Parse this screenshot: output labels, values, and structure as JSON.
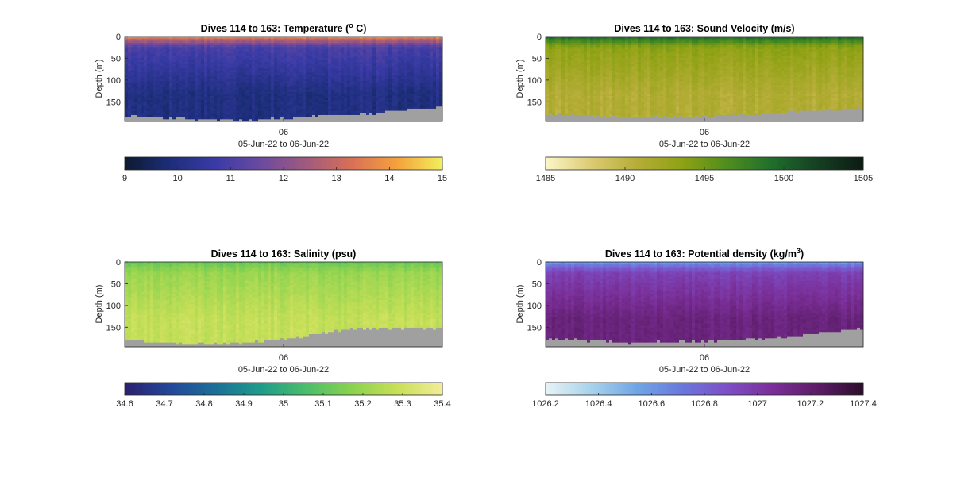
{
  "chart_data": [
    {
      "type": "heatmap",
      "title": "Dives 114 to 163: Temperature (",
      "title_superscript": "o",
      "title_suffix": " C)",
      "ylabel": "Depth (m)",
      "xlabel": "05-Jun-22 to 06-Jun-22",
      "x_tick_labels": [
        "06"
      ],
      "y_tick_labels": [
        "0",
        "50",
        "100",
        "150"
      ],
      "y_ticks": [
        0,
        50,
        100,
        150
      ],
      "ylim": [
        0,
        195
      ],
      "y_reversed": true,
      "colorbar": {
        "range": [
          9,
          15
        ],
        "tick_labels": [
          "9",
          "10",
          "11",
          "12",
          "13",
          "14",
          "15"
        ],
        "ticks": [
          9,
          10,
          11,
          12,
          13,
          14,
          15
        ],
        "colormap": [
          "#0d1a30",
          "#1c2e7a",
          "#3a3ba6",
          "#6b4aa0",
          "#a05a7e",
          "#d87056",
          "#f4a13c",
          "#f2f05a"
        ]
      },
      "field": {
        "surface_value": 14.0,
        "upper_value": 11.0,
        "deep_value": 10.0,
        "thermocline_depth": 25,
        "noise": 0.3
      },
      "bottom_depth_profile": [
        182,
        184,
        186,
        188,
        190,
        192,
        193,
        193,
        192,
        190,
        188,
        186,
        184,
        182,
        180,
        178,
        176,
        172,
        168,
        165,
        162
      ],
      "no_data_color": "#a0a0a0"
    },
    {
      "type": "heatmap",
      "title": "Dives 114 to 163: Sound Velocity (m/s)",
      "ylabel": "Depth (m)",
      "xlabel": "05-Jun-22 to 06-Jun-22",
      "x_tick_labels": [
        "06"
      ],
      "y_tick_labels": [
        "0",
        "50",
        "100",
        "150"
      ],
      "y_ticks": [
        0,
        50,
        100,
        150
      ],
      "ylim": [
        0,
        195
      ],
      "y_reversed": true,
      "colorbar": {
        "range": [
          1485,
          1505
        ],
        "tick_labels": [
          "1485",
          "1490",
          "1495",
          "1500",
          "1505"
        ],
        "ticks": [
          1485,
          1490,
          1495,
          1500,
          1505
        ],
        "colormap": [
          "#fbf6c8",
          "#dccb73",
          "#b6ad38",
          "#8fa214",
          "#4f8d1e",
          "#1f6e2c",
          "#153f22",
          "#0c1c14"
        ]
      },
      "field": {
        "surface_value": 1500.5,
        "upper_value": 1493.5,
        "deep_value": 1491.0,
        "thermocline_depth": 25,
        "noise": 0.9
      },
      "bottom_depth_profile": [
        176,
        178,
        180,
        182,
        184,
        186,
        186,
        185,
        184,
        183,
        182,
        181,
        180,
        178,
        176,
        174,
        172,
        170,
        168,
        166,
        164
      ],
      "no_data_color": "#a0a0a0"
    },
    {
      "type": "heatmap",
      "title": "Dives 114 to 163: Salinity (psu)",
      "ylabel": "Depth (m)",
      "xlabel": "05-Jun-22 to 06-Jun-22",
      "x_tick_labels": [
        "06"
      ],
      "y_tick_labels": [
        "0",
        "50",
        "100",
        "150"
      ],
      "y_ticks": [
        0,
        50,
        100,
        150
      ],
      "ylim": [
        0,
        195
      ],
      "y_reversed": true,
      "colorbar": {
        "range": [
          34.6,
          35.4
        ],
        "tick_labels": [
          "34.6",
          "34.7",
          "34.8",
          "34.9",
          "35",
          "35.1",
          "35.2",
          "35.3",
          "35.4"
        ],
        "ticks": [
          34.6,
          34.7,
          34.8,
          34.9,
          35.0,
          35.1,
          35.2,
          35.3,
          35.4
        ],
        "colormap": [
          "#2b1f6f",
          "#23479a",
          "#1c6f98",
          "#1e9c8a",
          "#4cbd6a",
          "#8ad24f",
          "#c8df58",
          "#f2ed98"
        ]
      },
      "field": {
        "surface_value": 35.1,
        "upper_value": 35.2,
        "deep_value": 35.28,
        "thermocline_depth": 25,
        "noise": 0.03
      },
      "bottom_depth_profile": [
        180,
        182,
        184,
        186,
        188,
        188,
        187,
        186,
        184,
        182,
        178,
        172,
        166,
        160,
        156,
        154,
        152,
        152,
        152,
        152,
        152
      ],
      "no_data_color": "#a0a0a0"
    },
    {
      "type": "heatmap",
      "title": "Dives 114 to 163: Potential density (kg/m",
      "title_superscript": "3",
      "title_suffix": ")",
      "ylabel": "Depth (m)",
      "xlabel": "05-Jun-22 to 06-Jun-22",
      "x_tick_labels": [
        "06"
      ],
      "y_tick_labels": [
        "0",
        "50",
        "100",
        "150"
      ],
      "y_ticks": [
        0,
        50,
        100,
        150
      ],
      "ylim": [
        0,
        195
      ],
      "y_reversed": true,
      "colorbar": {
        "range": [
          1026.2,
          1027.4
        ],
        "tick_labels": [
          "1026.2",
          "1026.4",
          "1026.6",
          "1026.8",
          "1027",
          "1027.2",
          "1027.4"
        ],
        "ticks": [
          1026.2,
          1026.4,
          1026.6,
          1026.8,
          1027.0,
          1027.2,
          1027.4
        ],
        "colormap": [
          "#e8f3f6",
          "#a9d2eb",
          "#6fa6e6",
          "#6a78dc",
          "#7d4fc6",
          "#7a2f98",
          "#5c1c66",
          "#2c0e2c"
        ]
      },
      "field": {
        "surface_value": 1026.55,
        "upper_value": 1026.95,
        "deep_value": 1027.15,
        "thermocline_depth": 25,
        "noise": 0.05
      },
      "bottom_depth_profile": [
        176,
        178,
        180,
        182,
        184,
        186,
        186,
        185,
        184,
        183,
        182,
        181,
        180,
        178,
        176,
        172,
        168,
        164,
        160,
        157,
        155
      ],
      "no_data_color": "#a0a0a0"
    }
  ]
}
